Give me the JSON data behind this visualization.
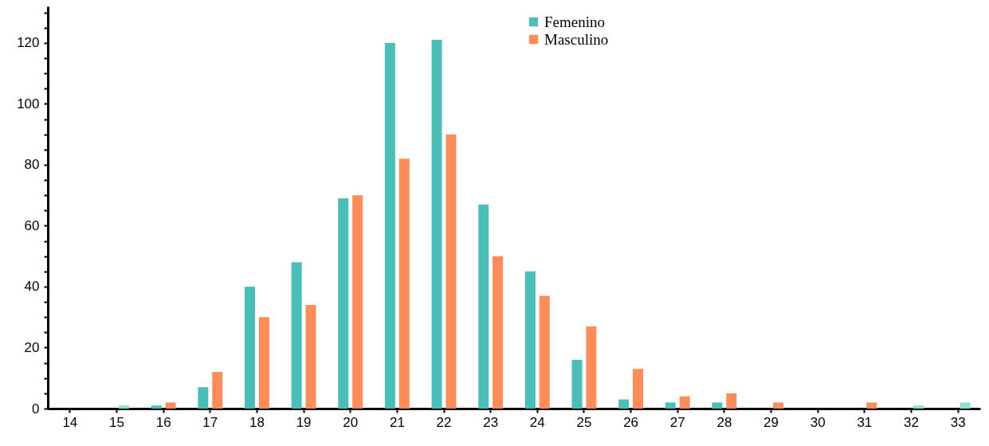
{
  "chart_data": {
    "type": "bar",
    "categories": [
      "14",
      "15",
      "16",
      "17",
      "18",
      "19",
      "20",
      "21",
      "22",
      "23",
      "24",
      "25",
      "26",
      "27",
      "28",
      "29",
      "30",
      "31",
      "32",
      "33"
    ],
    "series": [
      {
        "name": "Femenino",
        "color": "#4bbfb7",
        "values": [
          0,
          0,
          1,
          7,
          40,
          48,
          69,
          120,
          121,
          67,
          45,
          16,
          3,
          2,
          2,
          0,
          0,
          0,
          0,
          0
        ]
      },
      {
        "name": "Masculino",
        "color": "#fc8c5a",
        "colors": [
          "#fc8c5a",
          "#86dfd1",
          "#fc8c5a",
          "#fc8c5a",
          "#fc8c5a",
          "#fc8c5a",
          "#fc8c5a",
          "#fc8c5a",
          "#fc8c5a",
          "#fc8c5a",
          "#fc8c5a",
          "#fc8c5a",
          "#fc8c5a",
          "#fc8c5a",
          "#fc8c5a",
          "#fc8c5a",
          "#fc8c5a",
          "#fc8c5a",
          "#86dfd1",
          "#86dfd1"
        ],
        "values": [
          0,
          1,
          2,
          12,
          30,
          34,
          70,
          82,
          90,
          50,
          37,
          27,
          13,
          4,
          5,
          2,
          0,
          2,
          1,
          2
        ]
      }
    ],
    "ylim": [
      0,
      132
    ],
    "yticks": [
      0,
      {
        "value": 5,
        "label": null
      },
      {
        "value": 10,
        "label": null
      },
      {
        "value": 15,
        "label": null
      },
      20,
      {
        "value": 25,
        "label": null
      },
      {
        "value": 30,
        "label": null
      },
      {
        "value": 35,
        "label": null
      },
      40,
      {
        "value": 45,
        "label": null
      },
      {
        "value": 50,
        "label": null
      },
      {
        "value": 55,
        "label": null
      },
      60,
      {
        "value": 65,
        "label": null
      },
      {
        "value": 70,
        "label": null
      },
      {
        "value": 75,
        "label": null
      },
      80,
      {
        "value": 85,
        "label": null
      },
      {
        "value": 90,
        "label": null
      },
      {
        "value": 95,
        "label": null
      },
      100,
      {
        "value": 105,
        "label": null
      },
      {
        "value": 110,
        "label": null
      },
      {
        "value": 115,
        "label": null
      },
      120,
      {
        "value": 125,
        "label": null
      },
      {
        "value": 130,
        "label": null
      }
    ],
    "grid": false,
    "legend": "top"
  }
}
